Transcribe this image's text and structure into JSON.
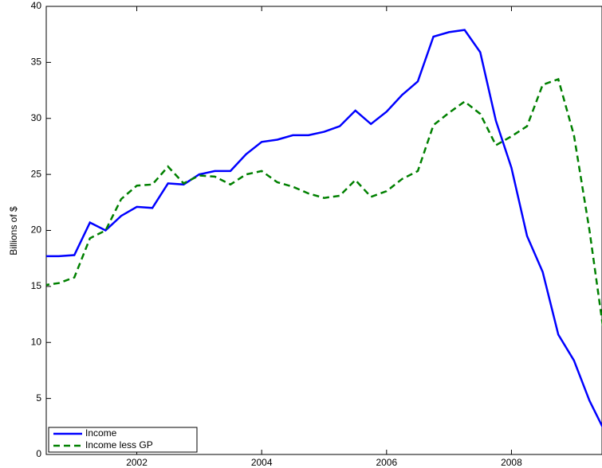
{
  "chart_data": {
    "type": "line",
    "y_label": "Billions of $",
    "x": [
      2000.5,
      2000.75,
      2001,
      2001.25,
      2001.5,
      2001.75,
      2002,
      2002.25,
      2002.5,
      2002.75,
      2003,
      2003.25,
      2003.5,
      2003.75,
      2004,
      2004.25,
      2004.5,
      2004.75,
      2005,
      2005.25,
      2005.5,
      2005.75,
      2006,
      2006.25,
      2006.5,
      2006.75,
      2007,
      2007.25,
      2007.5,
      2007.75,
      2008,
      2008.25,
      2008.5,
      2008.75,
      2009,
      2009.25,
      2009.5
    ],
    "series": [
      {
        "name": "Income",
        "color": "#0000ff",
        "dash": "solid",
        "values": [
          17.7,
          17.7,
          17.8,
          20.7,
          20.0,
          21.3,
          22.1,
          22.0,
          24.2,
          24.1,
          25.0,
          25.3,
          25.3,
          26.8,
          27.9,
          28.1,
          28.5,
          28.5,
          28.8,
          29.3,
          30.7,
          29.5,
          30.6,
          32.1,
          33.3,
          37.3,
          37.7,
          37.9,
          35.9,
          29.8,
          25.6,
          19.5,
          16.3,
          10.7,
          8.4,
          4.8,
          2.0
        ]
      },
      {
        "name": "Income less GP",
        "color": "#008000",
        "dash": "dashed",
        "values": [
          15.1,
          15.3,
          15.8,
          19.3,
          20.0,
          22.8,
          24.0,
          24.1,
          25.7,
          24.2,
          24.9,
          24.8,
          24.1,
          25.0,
          25.3,
          24.3,
          23.9,
          23.3,
          22.9,
          23.1,
          24.5,
          23.0,
          23.5,
          24.6,
          25.3,
          29.4,
          30.5,
          31.5,
          30.4,
          27.6,
          28.4,
          29.3,
          33.0,
          33.5,
          28.5,
          20.0,
          10.0
        ]
      }
    ],
    "xlim": [
      2000.55,
      2009.45
    ],
    "xticks": [
      2002,
      2004,
      2006,
      2008
    ],
    "ylim": [
      0,
      40
    ],
    "yticks": [
      0,
      5,
      10,
      15,
      20,
      25,
      30,
      35,
      40
    ],
    "grid": false,
    "legend": "lower left"
  }
}
